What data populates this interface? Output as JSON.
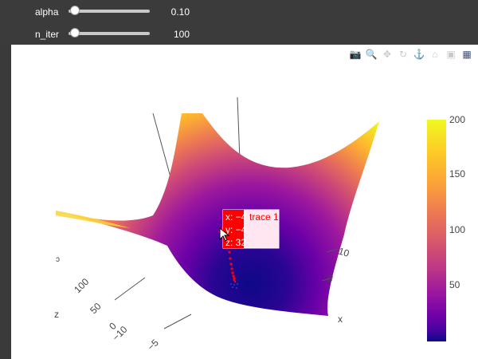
{
  "controls": {
    "alpha": {
      "label": "alpha",
      "value": "0.10",
      "position": 0.0
    },
    "n_iter": {
      "label": "n_iter",
      "value": "100",
      "position": 0.0
    }
  },
  "modebar": [
    {
      "name": "camera-icon",
      "glyph": "📷"
    },
    {
      "name": "zoom-icon",
      "glyph": "🔍"
    },
    {
      "name": "pan-icon",
      "glyph": "✥"
    },
    {
      "name": "orbit-rotation-icon",
      "glyph": "↻"
    },
    {
      "name": "turntable-rotation-icon",
      "glyph": "⚓"
    },
    {
      "name": "reset-camera-icon",
      "glyph": "⌂"
    },
    {
      "name": "camera-last-save-icon",
      "glyph": "▣"
    },
    {
      "name": "plotly-logo-icon",
      "glyph": "▦"
    }
  ],
  "hover": {
    "x": "x: −4",
    "y": "y: −4",
    "z": "z: 32",
    "trace": "trace 1"
  },
  "colorbar": {
    "ticks": [
      "200",
      "150",
      "100",
      "50"
    ],
    "colors": [
      "#0d0887",
      "#46039f",
      "#7201a8",
      "#9c179e",
      "#bd3786",
      "#d8576b",
      "#ed7953",
      "#fb9f3a",
      "#fdca26",
      "#f0f921"
    ]
  },
  "axes": {
    "x_title": "x",
    "z_title": "z",
    "x_ticks": [
      "10",
      "5"
    ],
    "z_ticks": [
      "100",
      "50",
      "0"
    ],
    "y_ticks": [
      "−10",
      "−5"
    ]
  }
}
